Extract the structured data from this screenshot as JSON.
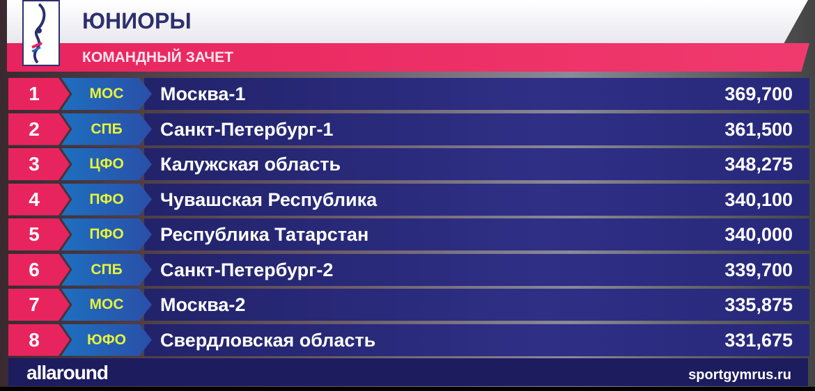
{
  "header": {
    "title": "ЮНИОРЫ",
    "subtitle": "КОМАНДНЫЙ ЗАЧЕТ"
  },
  "rows": [
    {
      "rank": "1",
      "code": "МОС",
      "name": "Москва-1",
      "score": "369,700"
    },
    {
      "rank": "2",
      "code": "СПБ",
      "name": "Санкт-Петербург-1",
      "score": "361,500"
    },
    {
      "rank": "3",
      "code": "ЦФО",
      "name": "Калужская область",
      "score": "348,275"
    },
    {
      "rank": "4",
      "code": "ПФО",
      "name": "Чувашская Республика",
      "score": "340,100"
    },
    {
      "rank": "5",
      "code": "ПФО",
      "name": "Республика Татарстан",
      "score": "340,000"
    },
    {
      "rank": "6",
      "code": "СПБ",
      "name": "Санкт-Петербург-2",
      "score": "339,700"
    },
    {
      "rank": "7",
      "code": "МОС",
      "name": "Москва-2",
      "score": "335,875"
    },
    {
      "rank": "8",
      "code": "ЮФО",
      "name": "Свердловская область",
      "score": "331,675"
    }
  ],
  "footer": {
    "brand": "allaround",
    "url": "sportgymrus.ru"
  },
  "colors": {
    "pink": "#e8245e",
    "navy": "#2e2f6e",
    "code_yellow": "#e8f23a",
    "code_blue": "#1e6fc0"
  }
}
